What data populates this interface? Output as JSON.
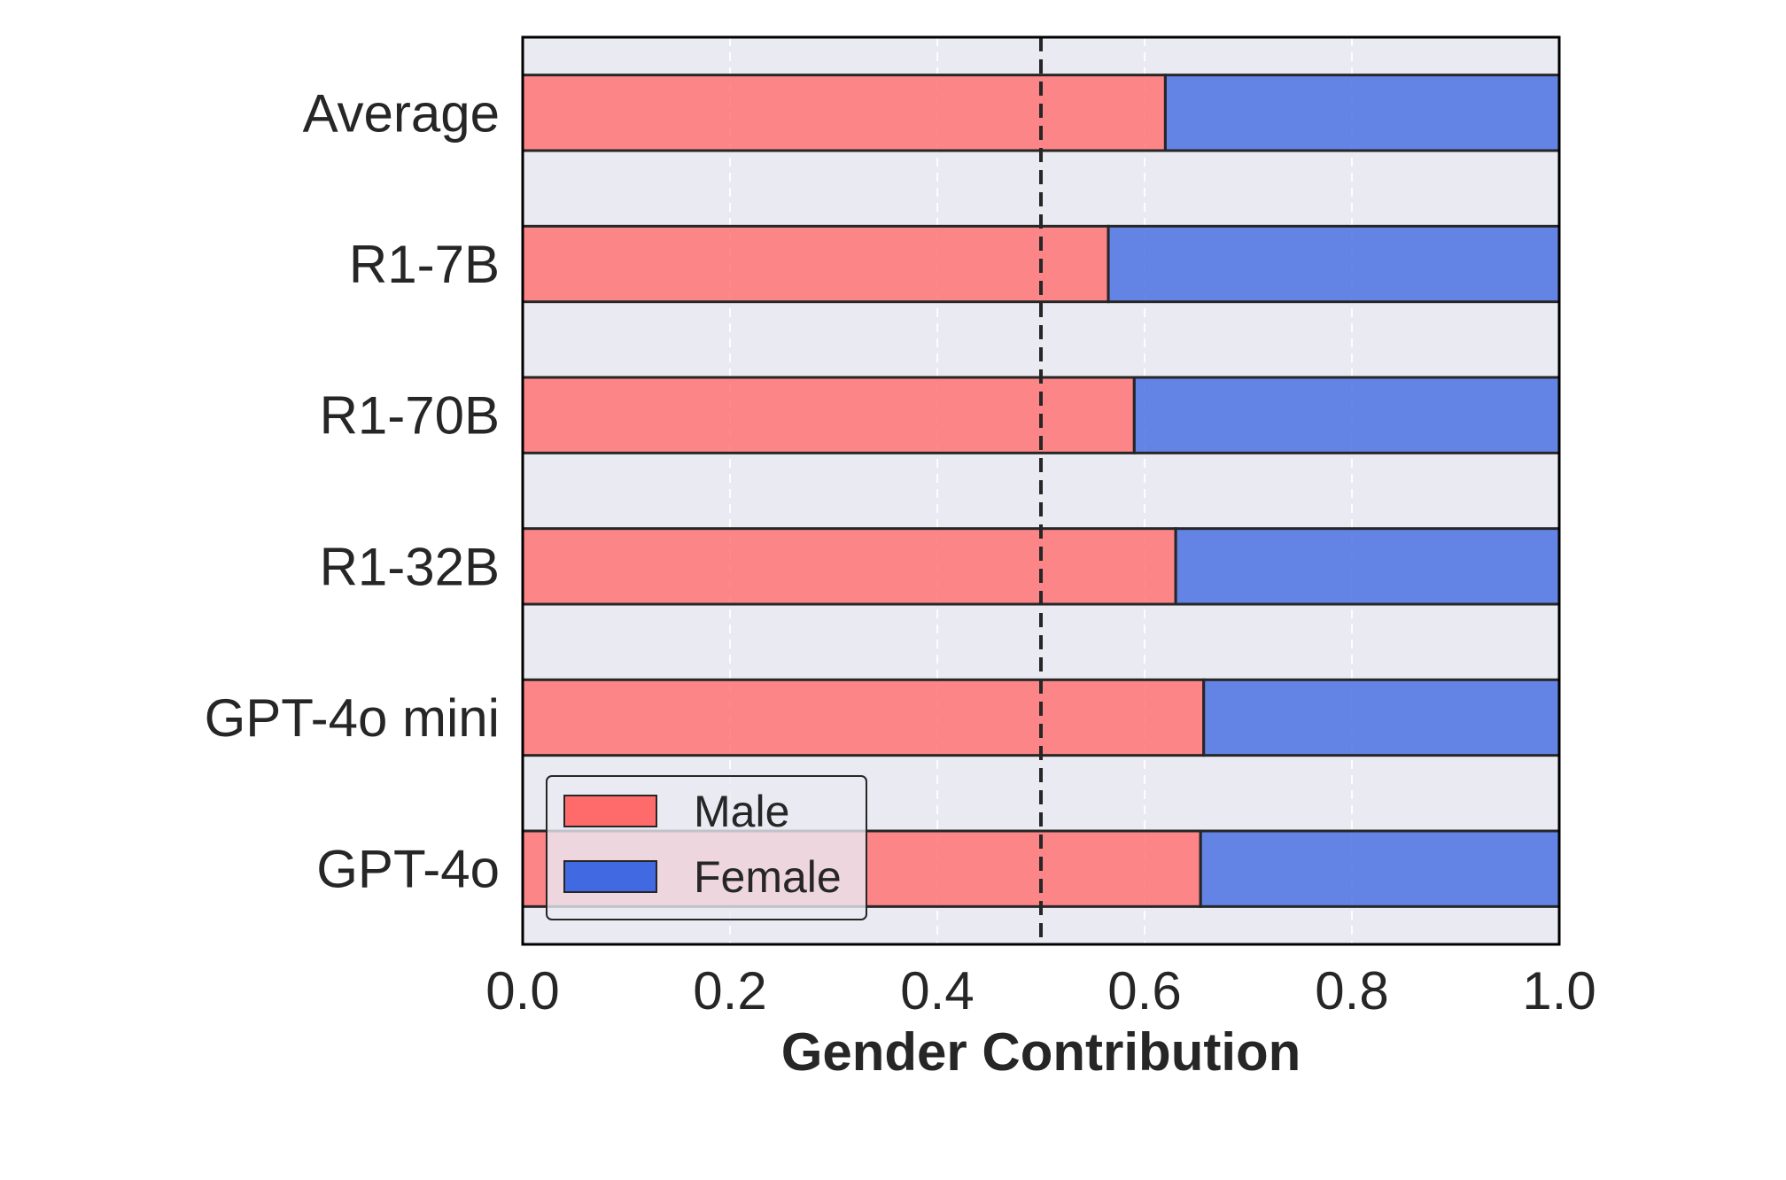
{
  "chart_data": {
    "type": "bar",
    "orientation": "horizontal",
    "stacked": true,
    "categories": [
      "Average",
      "R1-7B",
      "R1-70B",
      "R1-32B",
      "GPT-4o mini",
      "GPT-4o"
    ],
    "series": [
      {
        "name": "Male",
        "values": [
          0.62,
          0.565,
          0.59,
          0.63,
          0.657,
          0.654
        ]
      },
      {
        "name": "Female",
        "values": [
          0.38,
          0.435,
          0.41,
          0.37,
          0.343,
          0.346
        ]
      }
    ],
    "title": "",
    "xlabel": "Gender Contribution",
    "ylabel": "",
    "xlim": [
      0,
      1
    ],
    "xticks": [
      "0.0",
      "0.2",
      "0.4",
      "0.6",
      "0.8",
      "1.0"
    ],
    "reference_line": {
      "x": 0.5,
      "style": "dashed"
    },
    "grid": true,
    "legend": {
      "position": "lower-left",
      "entries": [
        "Male",
        "Female"
      ]
    },
    "colors": {
      "Male": "#ff6b6b",
      "Female": "#4169e1",
      "plot_background": "#eaeaf2"
    }
  }
}
